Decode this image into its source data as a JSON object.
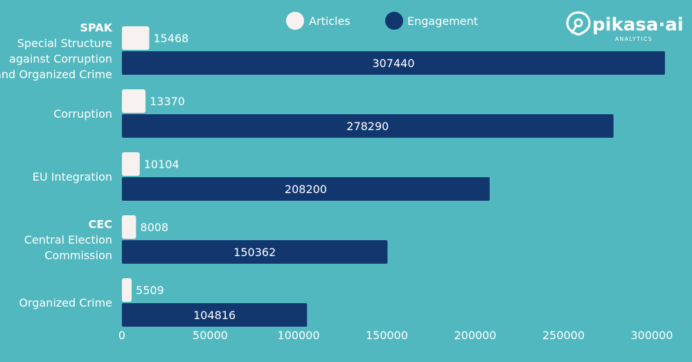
{
  "brand": {
    "name": "pikasa·ai",
    "tagline": "ANALYTICS"
  },
  "chart_data": {
    "type": "bar",
    "orientation": "horizontal",
    "categories": [
      {
        "bold": "SPAK",
        "lines": [
          "Special Structure",
          "against Corruption",
          "and Organized Crime"
        ]
      },
      {
        "bold": "",
        "lines": [
          "Corruption"
        ]
      },
      {
        "bold": "",
        "lines": [
          "EU Integration"
        ]
      },
      {
        "bold": "CEC",
        "lines": [
          "Central Election",
          "Commission"
        ]
      },
      {
        "bold": "",
        "lines": [
          "Organized Crime"
        ]
      }
    ],
    "series": [
      {
        "name": "Articles",
        "color": "#f7f1ef",
        "values": [
          15468,
          13370,
          10104,
          8008,
          5509
        ]
      },
      {
        "name": "Engagement",
        "color": "#12376f",
        "values": [
          307440,
          278290,
          208200,
          150362,
          104816
        ]
      }
    ],
    "xlim": [
      0,
      300000
    ],
    "xticks": [
      "0",
      "50000",
      "100000",
      "150000",
      "200000",
      "250000",
      "300000"
    ],
    "legend_position": "top",
    "grid": false
  }
}
